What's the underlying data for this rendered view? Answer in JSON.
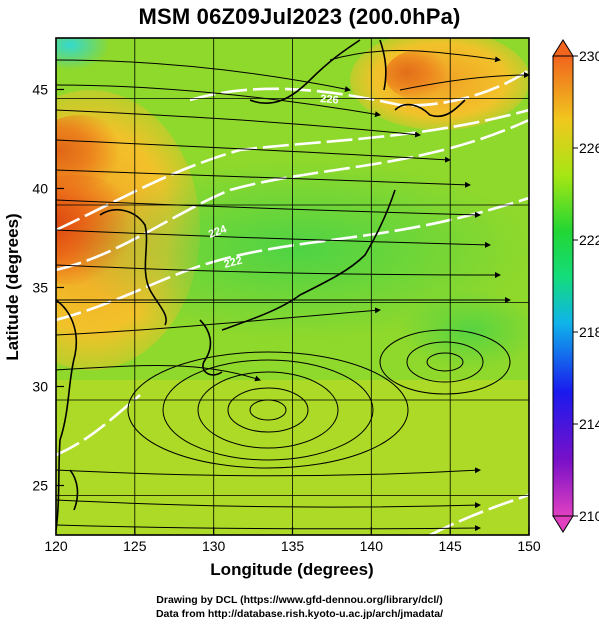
{
  "title": "MSM 06Z09Jul2023 (200.0hPa)",
  "map": {
    "x_axis": {
      "label": "Longitude (degrees)",
      "min": 120,
      "max": 150,
      "ticks": [
        120,
        125,
        130,
        135,
        140,
        145,
        150
      ]
    },
    "y_axis": {
      "label": "Latitude  (degrees)",
      "min": 22.5,
      "max": 47.6,
      "ticks": [
        25,
        30,
        35,
        40,
        45
      ]
    },
    "contour_labels": [
      "222",
      "224",
      "226"
    ]
  },
  "colorbar": {
    "min": 210,
    "max": 230,
    "tick_labels": [
      "230",
      "226",
      "222",
      "218",
      "214",
      "210"
    ],
    "tick_values": [
      230,
      226,
      222,
      218,
      214,
      210
    ],
    "colors": [
      "#e040c0",
      "#7a10c8",
      "#1a1aee",
      "#0fb4ea",
      "#14dc7a",
      "#22d633",
      "#a6e614",
      "#f0c81e",
      "#f0641e"
    ]
  },
  "footer": {
    "line1": "Drawing by DCL (https://www.gfd-dennou.org/library/dcl/)",
    "line2": "Data from http://database.rish.kyoto-u.ac.jp/arch/jmadata/"
  }
}
